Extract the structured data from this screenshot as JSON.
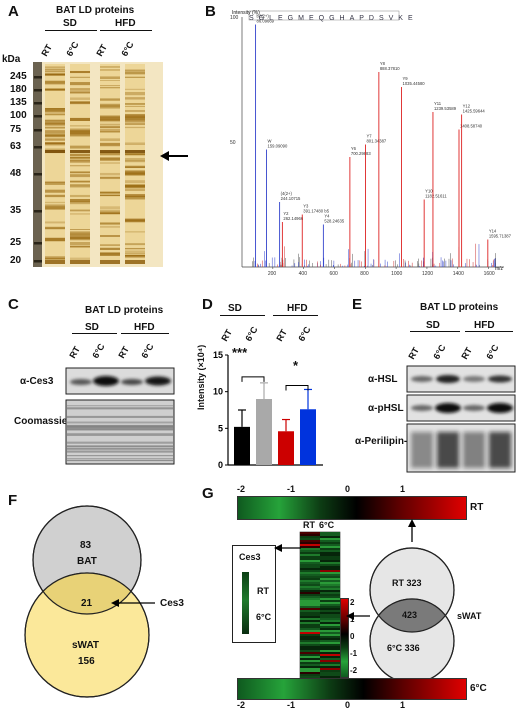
{
  "panels": {
    "A": "A",
    "B": "B",
    "C": "C",
    "D": "D",
    "E": "E",
    "F": "F",
    "G": "G"
  },
  "panel_a": {
    "title": "BAT LD proteins",
    "groups": [
      "SD",
      "HFD"
    ],
    "lanes": [
      "RT",
      "6°C",
      "RT",
      "6°C"
    ],
    "kda_label": "kDa",
    "markers": [
      "245",
      "180",
      "135",
      "100",
      "75",
      "63",
      "48",
      "35",
      "25",
      "20"
    ]
  },
  "panel_b": {
    "sequence": "SGLEGMEQGHAPDSVKE",
    "y_label": "Intensity (%)",
    "x_label": "m/z",
    "y_ticks": [
      "100",
      "50"
    ],
    "x_ticks": [
      "200",
      "400",
      "600",
      "800",
      "1000",
      "1200",
      "1400",
      "1600"
    ],
    "peaks": [
      {
        "label": "b2(2+)\n86.09669",
        "mz": 88,
        "i": 97,
        "c": "b"
      },
      {
        "label": "W\n159.09090",
        "mz": 159,
        "i": 47,
        "c": "b"
      },
      {
        "label": "(4(2+)\n244.10715",
        "mz": 244,
        "i": 26,
        "c": "b"
      },
      {
        "label": "Y2\n262.14966",
        "mz": 262,
        "i": 18,
        "c": "r"
      },
      {
        "label": "Y3\n391.17480",
        "mz": 391,
        "i": 21,
        "c": "r"
      },
      {
        "label": "b5\nY4\n528.24635",
        "mz": 528,
        "i": 17,
        "c": "b"
      },
      {
        "label": "Y6\n700.29883",
        "mz": 700,
        "i": 44,
        "c": "r"
      },
      {
        "label": "Y7\n801.34387",
        "mz": 801,
        "i": 49,
        "c": "r"
      },
      {
        "label": "Y8\n888.37810",
        "mz": 888,
        "i": 78,
        "c": "r"
      },
      {
        "label": "Y9\n1035.44580",
        "mz": 1035,
        "i": 72,
        "c": "r"
      },
      {
        "label": "Y10\n1182.51611",
        "mz": 1182,
        "i": 27,
        "c": "r"
      },
      {
        "label": "Y11\n1239.53589",
        "mz": 1239,
        "i": 62,
        "c": "r"
      },
      {
        "label": "1408.58740",
        "mz": 1408,
        "i": 55,
        "c": "r"
      },
      {
        "label": "Y12\n1425.59644",
        "mz": 1425,
        "i": 61,
        "c": "r"
      },
      {
        "label": "Y14\n1595.71387",
        "mz": 1595,
        "i": 11,
        "c": "r"
      }
    ]
  },
  "panel_c": {
    "title": "BAT LD proteins",
    "groups": [
      "SD",
      "HFD"
    ],
    "lanes": [
      "RT",
      "6°C",
      "RT",
      "6°C"
    ],
    "rows": [
      "α-Ces3",
      "Coomassie"
    ]
  },
  "panel_d": {
    "groups": [
      "SD",
      "HFD"
    ],
    "lanes": [
      "RT",
      "6°C",
      "RT",
      "6°C"
    ],
    "significance": [
      "***",
      "*"
    ]
  },
  "panel_e": {
    "title": "BAT LD proteins",
    "groups": [
      "SD",
      "HFD"
    ],
    "lanes": [
      "RT",
      "6°C",
      "RT",
      "6°C"
    ],
    "rows": [
      "α-HSL",
      "α-pHSL",
      "α-Perilipin-1"
    ]
  },
  "panel_f": {
    "bat_count": "83",
    "bat_label": "BAT",
    "overlap_count": "21",
    "overlap_label": "Ces3",
    "swat_label": "sWAT",
    "swat_count": "156"
  },
  "panel_g": {
    "colorbar_ticks": [
      "-2",
      "-1",
      "0",
      "1"
    ],
    "top_bar_label": "RT",
    "bottom_bar_label": "6°C",
    "heat_cols": [
      "RT",
      "6°C"
    ],
    "inset_title": "Ces3",
    "inset_rt": "RT",
    "inset_6c": "6°C",
    "scale_ticks": [
      "2",
      "1",
      "0",
      "-1",
      "-2"
    ],
    "venn_rt": "RT 323",
    "venn_overlap": "423",
    "venn_6c": "6°C 336",
    "venn_label": "sWAT"
  },
  "chart_data": {
    "type": "bar",
    "categories": [
      "SD RT",
      "SD 6°C",
      "HFD RT",
      "HFD 6°C"
    ],
    "values": [
      5.2,
      9.0,
      4.6,
      7.6
    ],
    "errors": [
      2.3,
      2.2,
      1.6,
      2.7
    ],
    "ylabel": "Intensity (×10⁴)",
    "ylim": [
      0,
      15
    ],
    "yticks": [
      0,
      5,
      10,
      15
    ],
    "colors": [
      "#000000",
      "#a9a9a9",
      "#cc0000",
      "#0033dd"
    ]
  }
}
